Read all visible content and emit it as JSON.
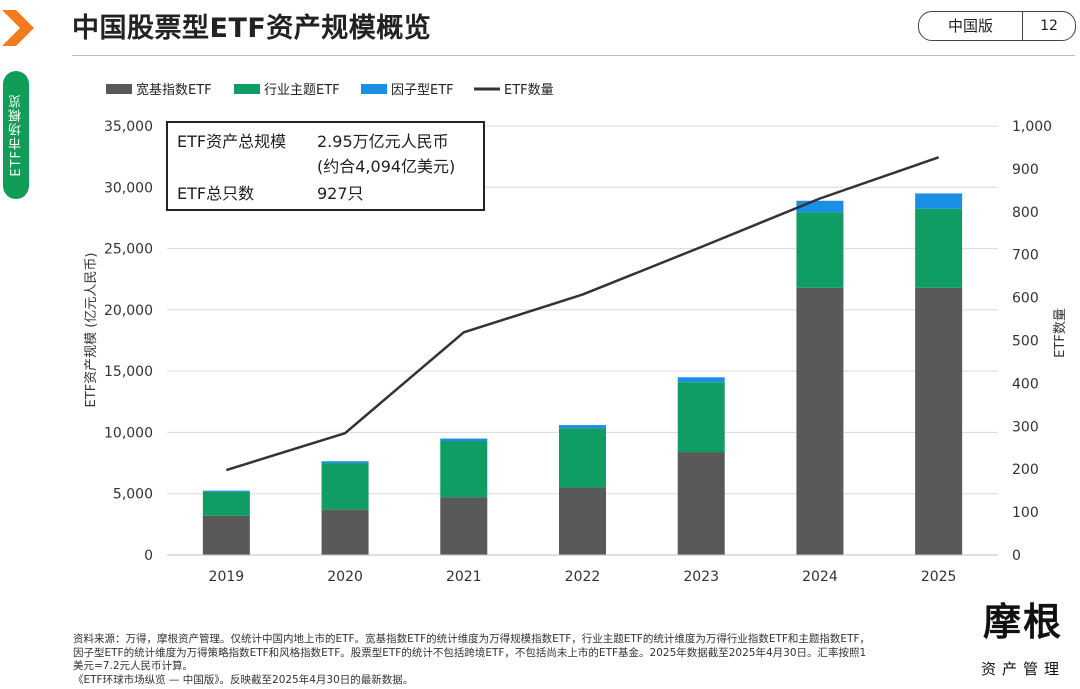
{
  "header": {
    "title": "中国股票型ETF资产规模概览",
    "edition": "中国版",
    "page_number": "12"
  },
  "side_tab": {
    "label": "ETF市场概览"
  },
  "info_box": {
    "total_aum_label": "ETF资产总规模",
    "total_aum_value": "2.95万亿元人民币",
    "total_aum_usd": "(约合4,094亿美元)",
    "count_label": "ETF总只数",
    "count_value": "927只"
  },
  "chart_data": {
    "type": "bar",
    "stacked": true,
    "categories": [
      "2019",
      "2020",
      "2021",
      "2022",
      "2023",
      "2024",
      "2025"
    ],
    "series": [
      {
        "name": "宽基指数ETF",
        "values": [
          3200,
          3700,
          4700,
          5500,
          8400,
          21800,
          21800
        ]
      },
      {
        "name": "行业主题ETF",
        "values": [
          1950,
          3800,
          4600,
          4850,
          5700,
          6150,
          6450
        ]
      },
      {
        "name": "因子型ETF",
        "values": [
          100,
          150,
          200,
          250,
          400,
          950,
          1250
        ]
      }
    ],
    "line_series": {
      "name": "ETF数量",
      "axis": "right",
      "values": [
        198,
        284,
        519,
        607,
        718,
        831,
        927
      ]
    },
    "ylabel": "ETF资产规模 (亿元人民币)",
    "y2label": "ETF数量",
    "ylim": [
      0,
      35000
    ],
    "y2lim": [
      0,
      1000
    ],
    "yticks": [
      "0",
      "5,000",
      "10,000",
      "15,000",
      "20,000",
      "25,000",
      "30,000",
      "35,000"
    ],
    "y2ticks": [
      "0",
      "100",
      "200",
      "300",
      "400",
      "500",
      "600",
      "700",
      "800",
      "900",
      "1,000"
    ],
    "grid": true,
    "legend_position": "top-left",
    "colors": {
      "broad": "#595959",
      "sector": "#0f9d64",
      "factor": "#1b8ee6",
      "line": "#333333",
      "grid": "#d9d9d9"
    }
  },
  "footnote": {
    "line1": "资料来源：万得，摩根资产管理。仅统计中国内地上市的ETF。宽基指数ETF的统计维度为万得规模指数ETF，行业主题ETF的统计维度为万得行业指数ETF和主题指数ETF，",
    "line2": "因子型ETF的统计维度为万得策略指数ETF和风格指数ETF。股票型ETF的统计不包括跨境ETF，不包括尚未上市的ETF基金。2025年数据截至2025年4月30日。汇率按照1",
    "line3": "美元=7.2元人民币计算。",
    "line4": "《ETF环球市场纵览 — 中国版》。反映截至2025年4月30日的最新数据。"
  },
  "brand": {
    "name": "摩根",
    "tagline": "资产管理"
  }
}
